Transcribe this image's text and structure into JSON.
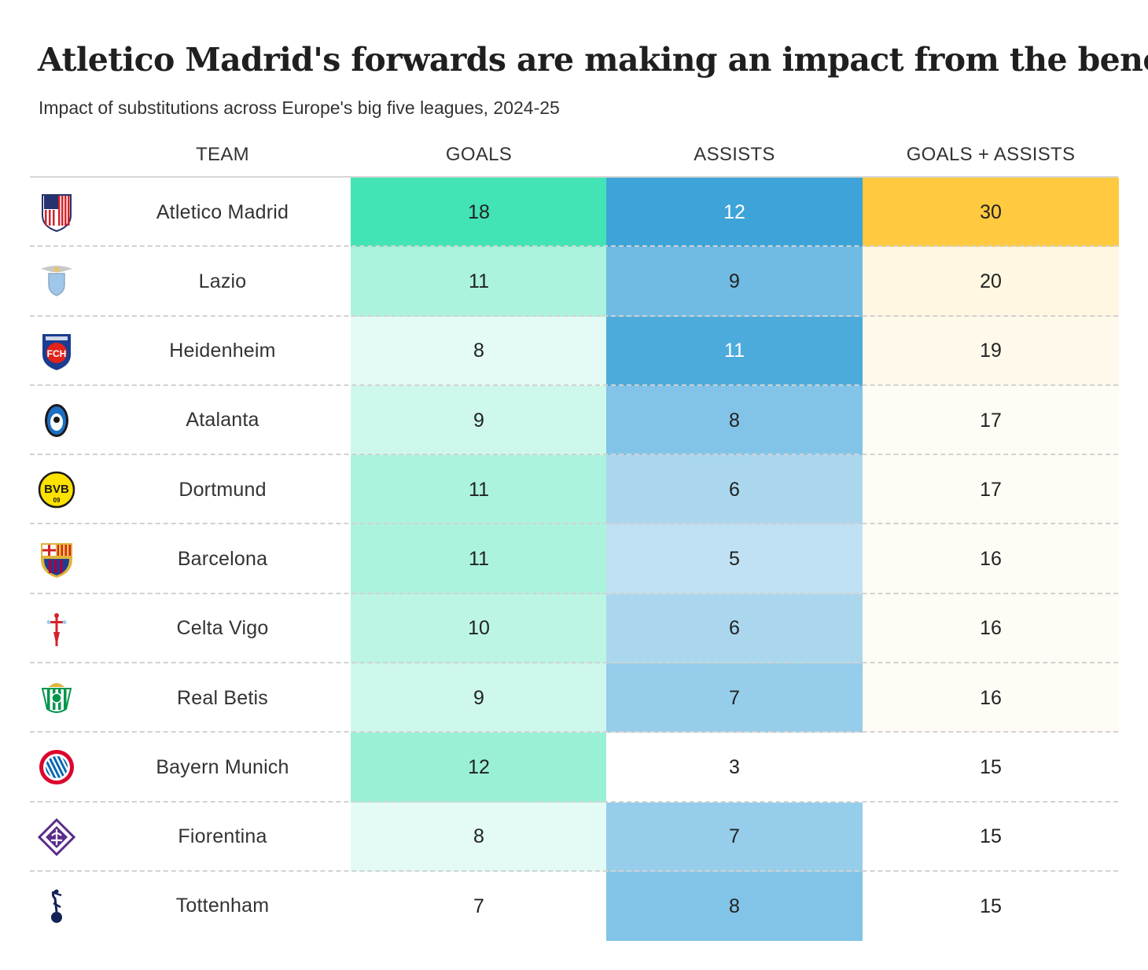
{
  "title": "Atletico Madrid's forwards are making an impact from the bench",
  "subtitle": "Impact of substitutions across Europe's big five leagues, 2024-25",
  "columns": [
    "TEAM",
    "GOALS",
    "ASSISTS",
    "GOALS + ASSISTS"
  ],
  "colors": {
    "goals_max": "#42e3b4",
    "assists_max": "#3da3d9",
    "total_max": "#ffc940"
  },
  "chart_data": {
    "type": "table",
    "columns": [
      "TEAM",
      "GOALS",
      "ASSISTS",
      "GOALS + ASSISTS"
    ],
    "rows": [
      {
        "team": "Atletico Madrid",
        "logo": "atletico-madrid-crest",
        "goals": 18,
        "assists": 12,
        "goals_assists": 30
      },
      {
        "team": "Lazio",
        "logo": "lazio-crest",
        "goals": 11,
        "assists": 9,
        "goals_assists": 20
      },
      {
        "team": "Heidenheim",
        "logo": "heidenheim-crest",
        "goals": 8,
        "assists": 11,
        "goals_assists": 19
      },
      {
        "team": "Atalanta",
        "logo": "atalanta-crest",
        "goals": 9,
        "assists": 8,
        "goals_assists": 17
      },
      {
        "team": "Dortmund",
        "logo": "dortmund-crest",
        "goals": 11,
        "assists": 6,
        "goals_assists": 17
      },
      {
        "team": "Barcelona",
        "logo": "barcelona-crest",
        "goals": 11,
        "assists": 5,
        "goals_assists": 16
      },
      {
        "team": "Celta Vigo",
        "logo": "celta-vigo-crest",
        "goals": 10,
        "assists": 6,
        "goals_assists": 16
      },
      {
        "team": "Real Betis",
        "logo": "real-betis-crest",
        "goals": 9,
        "assists": 7,
        "goals_assists": 16
      },
      {
        "team": "Bayern Munich",
        "logo": "bayern-munich-crest",
        "goals": 12,
        "assists": 3,
        "goals_assists": 15
      },
      {
        "team": "Fiorentina",
        "logo": "fiorentina-crest",
        "goals": 8,
        "assists": 7,
        "goals_assists": 15
      },
      {
        "team": "Tottenham",
        "logo": "tottenham-crest",
        "goals": 7,
        "assists": 8,
        "goals_assists": 15
      }
    ]
  }
}
